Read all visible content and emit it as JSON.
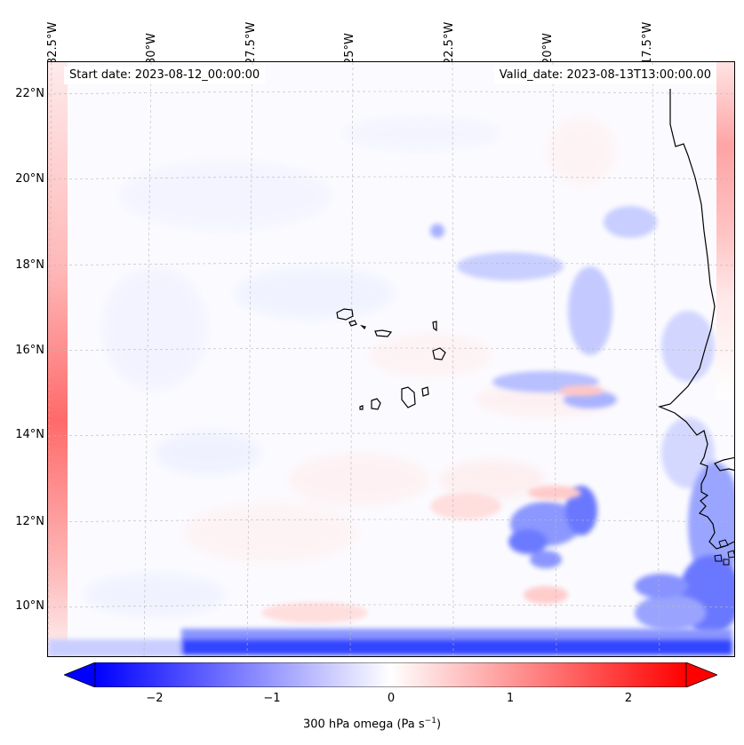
{
  "map": {
    "start_date": "Start date: 2023-08-12_00:00:00",
    "valid_date": "Valid_date: 2023-08-13T13:00:00.00",
    "longitude_labels": [
      "32.5°W",
      "30°W",
      "27.5°W",
      "25°W",
      "22.5°W",
      "20°W",
      "17.5°W"
    ],
    "latitude_labels": [
      "22°N",
      "20°N",
      "18°N",
      "16°N",
      "14°N",
      "12°N",
      "10°N"
    ],
    "field": "300 hPa omega",
    "colors": {
      "negative": "#0000ff",
      "positive": "#ff0000",
      "neutral": "#ffffff",
      "coastline": "#000000",
      "gridline": "#b0b0b0"
    }
  },
  "colorbar": {
    "ticks": [
      "−2",
      "−1",
      "0",
      "1",
      "2"
    ],
    "tick_values": [
      -2,
      -1,
      0,
      1,
      2
    ],
    "range": [
      -2.6,
      2.6
    ],
    "label_main": "300 hPa omega (Pa s",
    "label_sup": "−1",
    "label_end": ")"
  }
}
